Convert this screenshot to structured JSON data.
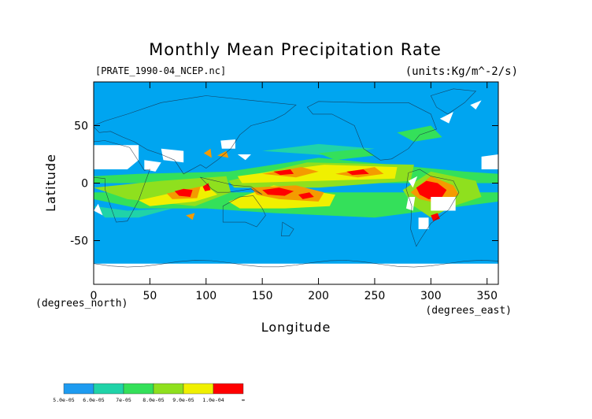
{
  "chart_data": {
    "type": "heatmap",
    "title": "Monthly Mean Precipitation Rate",
    "file_label": "[PRATE_1990-04_NCEP.nc]",
    "units_label": "(units:Kg/m^-2/s)",
    "xlabel": "Longitude",
    "ylabel": "Latitude",
    "x_axis_note": "(degrees_east)",
    "y_axis_note": "(degrees_north)",
    "xlim": [
      0,
      360
    ],
    "ylim": [
      -88,
      88
    ],
    "x_ticks": [
      {
        "value": 0,
        "label": "0"
      },
      {
        "value": 50,
        "label": "50"
      },
      {
        "value": 100,
        "label": "100"
      },
      {
        "value": 150,
        "label": "150"
      },
      {
        "value": 200,
        "label": "200"
      },
      {
        "value": 250,
        "label": "250"
      },
      {
        "value": 300,
        "label": "300"
      },
      {
        "value": 350,
        "label": "350"
      }
    ],
    "y_ticks": [
      {
        "value": 50,
        "label": "50"
      },
      {
        "value": 0,
        "label": "0"
      },
      {
        "value": -50,
        "label": "-50"
      }
    ],
    "colorbar": {
      "levels": [
        {
          "label": "5.0e-05",
          "color": "#1e9bf0"
        },
        {
          "label": "6.0e-05",
          "color": "#20d3a8"
        },
        {
          "label": "7e-05",
          "color": "#34e05a"
        },
        {
          "label": "8.0e-05",
          "color": "#8fe01e"
        },
        {
          "label": "9.0e-05",
          "color": "#f0f000"
        },
        {
          "label": "1.0e-04",
          "color": "#f49b00"
        },
        {
          "label": "∞",
          "color": "#ff0000"
        }
      ]
    },
    "background_color": "#00a5f0",
    "missing_color": "#ffffff",
    "regions": [
      {
        "level": 6,
        "points": [
          [
            287,
            -4
          ],
          [
            296,
            2
          ],
          [
            306,
            0
          ],
          [
            314,
            -6
          ],
          [
            310,
            -12
          ],
          [
            298,
            -14
          ],
          [
            290,
            -10
          ]
        ]
      },
      {
        "level": 6,
        "points": [
          [
            300,
            -28
          ],
          [
            306,
            -26
          ],
          [
            308,
            -31
          ],
          [
            302,
            -33
          ]
        ]
      },
      {
        "level": 6,
        "points": [
          [
            72,
            -7
          ],
          [
            80,
            -5
          ],
          [
            88,
            -6
          ],
          [
            86,
            -12
          ],
          [
            76,
            -11
          ]
        ]
      },
      {
        "level": 6,
        "points": [
          [
            97,
            -3
          ],
          [
            102,
            0
          ],
          [
            104,
            -6
          ],
          [
            99,
            -7
          ]
        ]
      },
      {
        "level": 6,
        "points": [
          [
            150,
            -6
          ],
          [
            165,
            -4
          ],
          [
            178,
            -7
          ],
          [
            170,
            -11
          ],
          [
            155,
            -10
          ]
        ]
      },
      {
        "level": 6,
        "points": [
          [
            182,
            -10
          ],
          [
            192,
            -8
          ],
          [
            196,
            -12
          ],
          [
            186,
            -14
          ]
        ]
      },
      {
        "level": 6,
        "points": [
          [
            160,
            10
          ],
          [
            175,
            12
          ],
          [
            178,
            8
          ],
          [
            166,
            7
          ]
        ]
      },
      {
        "level": 6,
        "points": [
          [
            225,
            10
          ],
          [
            240,
            12
          ],
          [
            245,
            8
          ],
          [
            230,
            7
          ]
        ]
      },
      {
        "level": 5,
        "points": [
          [
            282,
            -8
          ],
          [
            300,
            6
          ],
          [
            320,
            -2
          ],
          [
            325,
            -10
          ],
          [
            308,
            -18
          ],
          [
            290,
            -14
          ]
        ]
      },
      {
        "level": 5,
        "points": [
          [
            140,
            -4
          ],
          [
            180,
            -2
          ],
          [
            205,
            -8
          ],
          [
            200,
            -16
          ],
          [
            165,
            -14
          ],
          [
            145,
            -10
          ]
        ]
      },
      {
        "level": 5,
        "points": [
          [
            150,
            8
          ],
          [
            185,
            14
          ],
          [
            200,
            10
          ],
          [
            180,
            5
          ]
        ]
      },
      {
        "level": 5,
        "points": [
          [
            215,
            8
          ],
          [
            250,
            14
          ],
          [
            258,
            8
          ],
          [
            235,
            5
          ]
        ]
      },
      {
        "level": 5,
        "points": [
          [
            65,
            -9
          ],
          [
            95,
            -3
          ],
          [
            92,
            -13
          ],
          [
            70,
            -14
          ]
        ]
      },
      {
        "level": 4,
        "points": [
          [
            128,
            6
          ],
          [
            205,
            16
          ],
          [
            270,
            14
          ],
          [
            268,
            4
          ],
          [
            200,
            2
          ],
          [
            132,
            0
          ]
        ]
      },
      {
        "level": 4,
        "points": [
          [
            120,
            -16
          ],
          [
            160,
            -2
          ],
          [
            215,
            -10
          ],
          [
            210,
            -20
          ],
          [
            170,
            -22
          ],
          [
            130,
            -22
          ]
        ]
      },
      {
        "level": 4,
        "points": [
          [
            40,
            -15
          ],
          [
            100,
            -2
          ],
          [
            110,
            -10
          ],
          [
            90,
            -16
          ],
          [
            50,
            -20
          ]
        ]
      },
      {
        "level": 3,
        "points": [
          [
            120,
            2
          ],
          [
            190,
            18
          ],
          [
            285,
            16
          ],
          [
            282,
            2
          ],
          [
            200,
            -4
          ],
          [
            125,
            -4
          ]
        ]
      },
      {
        "level": 3,
        "points": [
          [
            0,
            -4
          ],
          [
            60,
            2
          ],
          [
            118,
            6
          ],
          [
            122,
            -8
          ],
          [
            90,
            -20
          ],
          [
            30,
            -14
          ]
        ]
      },
      {
        "level": 3,
        "points": [
          [
            275,
            -6
          ],
          [
            300,
            10
          ],
          [
            340,
            2
          ],
          [
            345,
            -12
          ],
          [
            320,
            -20
          ],
          [
            300,
            -30
          ],
          [
            285,
            -20
          ]
        ]
      },
      {
        "level": 2,
        "points": [
          [
            0,
            0
          ],
          [
            360,
            0
          ],
          [
            360,
            8
          ],
          [
            330,
            10
          ],
          [
            200,
            22
          ],
          [
            120,
            10
          ],
          [
            40,
            8
          ],
          [
            0,
            6
          ]
        ]
      },
      {
        "level": 2,
        "points": [
          [
            0,
            -8
          ],
          [
            360,
            -8
          ],
          [
            360,
            -16
          ],
          [
            250,
            -30
          ],
          [
            160,
            -26
          ],
          [
            100,
            -22
          ],
          [
            40,
            -22
          ],
          [
            0,
            -14
          ]
        ]
      },
      {
        "level": 2,
        "points": [
          [
            270,
            44
          ],
          [
            300,
            50
          ],
          [
            310,
            40
          ],
          [
            285,
            36
          ]
        ]
      },
      {
        "level": 2,
        "points": [
          [
            200,
            26
          ],
          [
            240,
            30
          ],
          [
            250,
            24
          ],
          [
            215,
            20
          ]
        ]
      },
      {
        "level": 1,
        "points": [
          [
            150,
            28
          ],
          [
            200,
            34
          ],
          [
            250,
            30
          ],
          [
            210,
            24
          ]
        ]
      },
      {
        "level": 1,
        "points": [
          [
            0,
            -20
          ],
          [
            30,
            -24
          ],
          [
            70,
            -22
          ],
          [
            40,
            -30
          ],
          [
            10,
            -30
          ]
        ]
      },
      {
        "level": 5,
        "points": [
          [
            110,
            24
          ],
          [
            118,
            28
          ],
          [
            120,
            22
          ]
        ]
      },
      {
        "level": 5,
        "points": [
          [
            98,
            26
          ],
          [
            104,
            30
          ],
          [
            105,
            22
          ]
        ]
      },
      {
        "level": 5,
        "points": [
          [
            82,
            -28
          ],
          [
            90,
            -26
          ],
          [
            88,
            -32
          ]
        ]
      },
      {
        "level": 5,
        "points": [
          [
            325,
            -82
          ],
          [
            333,
            -80
          ],
          [
            330,
            -85
          ]
        ]
      }
    ],
    "missing_regions": [
      {
        "points": [
          [
            0,
            33
          ],
          [
            40,
            33
          ],
          [
            40,
            20
          ],
          [
            30,
            12
          ],
          [
            0,
            12
          ]
        ]
      },
      {
        "points": [
          [
            60,
            30
          ],
          [
            80,
            28
          ],
          [
            80,
            18
          ],
          [
            62,
            20
          ]
        ]
      },
      {
        "points": [
          [
            45,
            20
          ],
          [
            60,
            18
          ],
          [
            55,
            10
          ],
          [
            45,
            12
          ]
        ]
      },
      {
        "points": [
          [
            113,
            37
          ],
          [
            126,
            38
          ],
          [
            126,
            30
          ],
          [
            114,
            30
          ]
        ]
      },
      {
        "points": [
          [
            128,
            25
          ],
          [
            140,
            25
          ],
          [
            135,
            20
          ]
        ]
      },
      {
        "points": [
          [
            300,
            -12
          ],
          [
            322,
            -12
          ],
          [
            322,
            -24
          ],
          [
            300,
            -24
          ]
        ]
      },
      {
        "points": [
          [
            280,
            -12
          ],
          [
            286,
            -12
          ],
          [
            284,
            -24
          ],
          [
            278,
            -22
          ]
        ]
      },
      {
        "points": [
          [
            289,
            -30
          ],
          [
            298,
            -30
          ],
          [
            298,
            -40
          ],
          [
            289,
            -40
          ]
        ]
      },
      {
        "points": [
          [
            345,
            23
          ],
          [
            360,
            25
          ],
          [
            360,
            12
          ],
          [
            345,
            12
          ]
        ]
      },
      {
        "points": [
          [
            0,
            -70
          ],
          [
            360,
            -70
          ],
          [
            360,
            -88
          ],
          [
            0,
            -88
          ]
        ]
      },
      {
        "points": [
          [
            0,
            -24
          ],
          [
            8,
            -28
          ],
          [
            4,
            -18
          ]
        ]
      },
      {
        "points": [
          [
            308,
            56
          ],
          [
            320,
            62
          ],
          [
            316,
            52
          ]
        ]
      },
      {
        "points": [
          [
            335,
            68
          ],
          [
            345,
            72
          ],
          [
            340,
            64
          ]
        ]
      },
      {
        "points": [
          [
            280,
            2
          ],
          [
            288,
            6
          ],
          [
            284,
            -4
          ]
        ]
      }
    ]
  }
}
